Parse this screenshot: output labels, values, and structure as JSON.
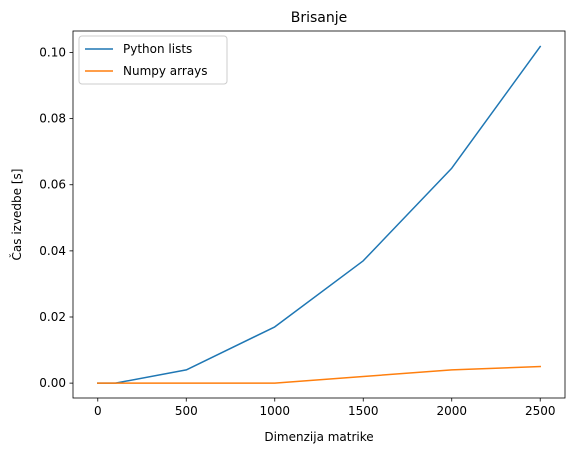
{
  "chart_data": {
    "type": "line",
    "title": "Brisanje",
    "xlabel": "Dimenzija matrike",
    "ylabel": "Čas izvedbe [s]",
    "xlim": [
      -140,
      2640
    ],
    "ylim": [
      -0.0045,
      0.1065
    ],
    "x_ticks": [
      0,
      500,
      1000,
      1500,
      2000,
      2500
    ],
    "x_tick_labels": [
      "0",
      "500",
      "1000",
      "1500",
      "2000",
      "2500"
    ],
    "y_ticks": [
      0.0,
      0.02,
      0.04,
      0.06,
      0.08,
      0.1
    ],
    "y_tick_labels": [
      "0.00",
      "0.02",
      "0.04",
      "0.06",
      "0.08",
      "0.10"
    ],
    "grid": false,
    "legend_position": "top-left",
    "series": [
      {
        "name": "Python lists",
        "color": "#1f77b4",
        "x": [
          0,
          100,
          500,
          1000,
          1500,
          2000,
          2500
        ],
        "y": [
          0.0,
          0.0,
          0.004,
          0.017,
          0.037,
          0.065,
          0.1018
        ]
      },
      {
        "name": "Numpy arrays",
        "color": "#ff7f0e",
        "x": [
          0,
          100,
          500,
          1000,
          1500,
          2000,
          2500
        ],
        "y": [
          0.0,
          0.0,
          0.0,
          0.0,
          0.002,
          0.004,
          0.005
        ]
      }
    ]
  }
}
